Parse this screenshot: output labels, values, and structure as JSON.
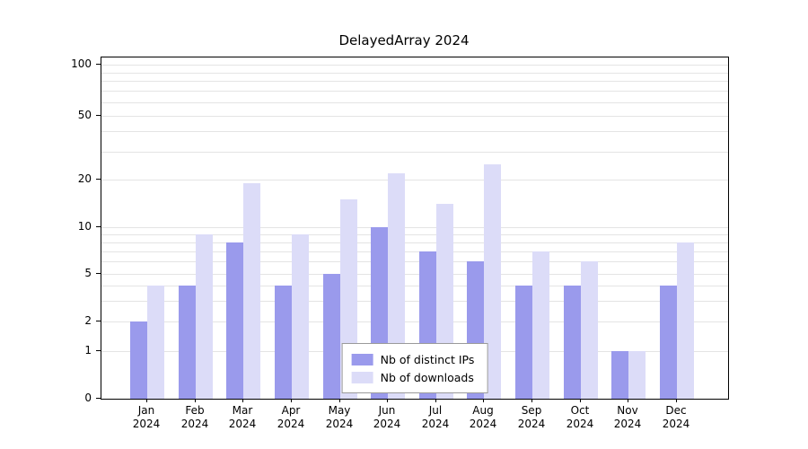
{
  "chart_data": {
    "type": "bar",
    "title": "DelayedArray 2024",
    "year": "2024",
    "categories": [
      "Jan",
      "Feb",
      "Mar",
      "Apr",
      "May",
      "Jun",
      "Jul",
      "Aug",
      "Sep",
      "Oct",
      "Nov",
      "Dec"
    ],
    "series": [
      {
        "name": "Nb of distinct IPs",
        "color": "#9a9aec",
        "values": [
          2,
          4,
          8,
          4,
          5,
          10,
          7,
          6,
          4,
          4,
          1,
          4
        ]
      },
      {
        "name": "Nb of downloads",
        "color": "#dcdcf8",
        "values": [
          4,
          9,
          19,
          9,
          15,
          22,
          14,
          25,
          7,
          6,
          1,
          8
        ]
      }
    ],
    "yticks": [
      0,
      1,
      2,
      5,
      10,
      20,
      50,
      100
    ],
    "minor_gridlines": [
      3,
      4,
      6,
      7,
      8,
      9,
      30,
      40,
      60,
      70,
      80,
      90
    ],
    "ylim": [
      0,
      100
    ],
    "scale": "log-like-with-zero-baseline",
    "grid": true,
    "legend_position": "bottom-center",
    "xlabel": "",
    "ylabel": ""
  }
}
